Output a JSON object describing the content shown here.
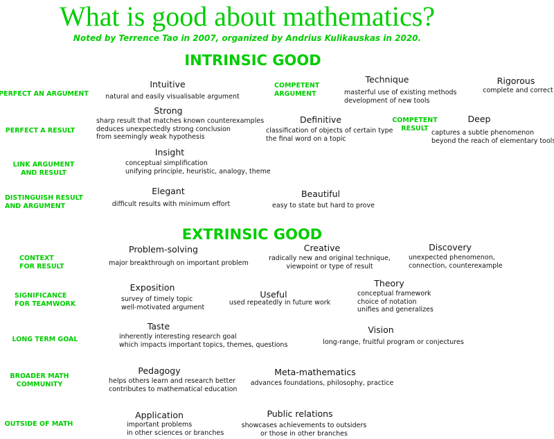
{
  "title": "What is good about mathematics?",
  "subtitle": "Noted by Terrence Tao in 2007, organized by Andrius Kulikauskas in 2020.",
  "accent_color": "#00cc00",
  "intrinsic": {
    "heading": "INTRINSIC GOOD",
    "labels": {
      "perfect_argument": [
        "PERFECT AN ARGUMENT"
      ],
      "perfect_result": [
        "PERFECT A RESULT"
      ],
      "link": [
        "LINK ARGUMENT",
        "AND RESULT"
      ],
      "distinguish": [
        "DISTINGUISH RESULT",
        "AND ARGUMENT"
      ],
      "competent_argument": [
        "COMPETENT",
        "ARGUMENT"
      ],
      "competent_result": [
        "COMPETENT",
        "RESULT"
      ]
    },
    "items": {
      "intuitive": {
        "name": "Intuitive",
        "desc": [
          "natural and easily visualisable argument"
        ]
      },
      "strong": {
        "name": "Strong",
        "desc": [
          "sharp result that matches known counterexamples",
          "deduces unexpectedly strong conclusion",
          "from seemingly weak hypothesis"
        ]
      },
      "insight": {
        "name": "Insight",
        "desc": [
          "conceptual simplification",
          "unifying principle, heuristic, analogy, theme"
        ]
      },
      "elegant": {
        "name": "Elegant",
        "desc": [
          "difficult results with minimum effort"
        ]
      },
      "technique": {
        "name": "Technique",
        "desc": [
          "masterful use of existing methods",
          "development of new tools"
        ]
      },
      "rigorous": {
        "name": "Rigorous",
        "desc": [
          "complete and correct"
        ]
      },
      "definitive": {
        "name": "Definitive",
        "desc": [
          "classification of objects of certain type",
          "the final word on a topic"
        ]
      },
      "deep": {
        "name": "Deep",
        "desc": [
          "captures a subtle phenomenon",
          "beyond the reach of elementary tools"
        ]
      },
      "beautiful": {
        "name": "Beautiful",
        "desc": [
          "easy to state but hard to prove"
        ]
      }
    }
  },
  "extrinsic": {
    "heading": "EXTRINSIC GOOD",
    "labels": {
      "context": [
        "CONTEXT",
        "FOR RESULT"
      ],
      "significance": [
        "SIGNIFICANCE",
        "FOR TEAMWORK"
      ],
      "long_term": [
        "LONG TERM GOAL"
      ],
      "broader": [
        "BROADER MATH",
        "COMMUNITY"
      ],
      "outside": [
        "OUTSIDE OF MATH"
      ]
    },
    "items": {
      "problem_solving": {
        "name": "Problem-solving",
        "desc": [
          "major breakthrough on important problem"
        ]
      },
      "creative": {
        "name": "Creative",
        "desc": [
          "radically new and original technique,",
          "viewpoint or type of result"
        ]
      },
      "discovery": {
        "name": "Discovery",
        "desc": [
          "unexpected phenomenon,",
          "connection, counterexample"
        ]
      },
      "exposition": {
        "name": "Exposition",
        "desc": [
          "survey of timely topic",
          "well-motivated argument"
        ]
      },
      "useful": {
        "name": "Useful",
        "desc": [
          "used repeatedly in future work"
        ]
      },
      "theory": {
        "name": "Theory",
        "desc": [
          "conceptual framework",
          "choice of notation",
          "unifies and generalizes"
        ]
      },
      "taste": {
        "name": "Taste",
        "desc": [
          "inherently interesting research goal",
          "which impacts important topics, themes, questions"
        ]
      },
      "vision": {
        "name": "Vision",
        "desc": [
          "long-range, fruitful program or conjectures"
        ]
      },
      "pedagogy": {
        "name": "Pedagogy",
        "desc": [
          "helps others learn and research better",
          "contributes to mathematical education"
        ]
      },
      "meta": {
        "name": "Meta-mathematics",
        "desc": [
          "advances foundations, philosophy, practice"
        ]
      },
      "application": {
        "name": "Application",
        "desc": [
          "important problems",
          "in other sciences or branches"
        ]
      },
      "public": {
        "name": "Public relations",
        "desc": [
          "showcases achievements to outsiders",
          "or those in other branches"
        ]
      }
    }
  }
}
